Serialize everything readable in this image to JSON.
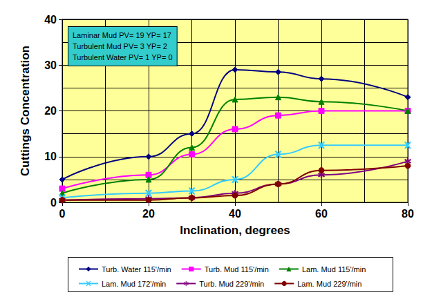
{
  "chart_data": {
    "type": "line",
    "x_label": "Inclination, degrees",
    "y_label": "Cuttings Concentration",
    "annotations": [
      "Laminar Mud PV= 19 YP= 17",
      "Turbulent Mud PV= 3 YP= 2",
      "Turbulent Water PV= 1 YP= 0"
    ],
    "x": [
      0,
      20,
      30,
      40,
      50,
      60,
      80
    ],
    "series": [
      {
        "name": "Turb. Water 115'/min",
        "color": "#000080",
        "marker": "diamond",
        "values": [
          5,
          10,
          15,
          29,
          28.5,
          27,
          23
        ]
      },
      {
        "name": "Turb. Mud 115'/min",
        "color": "#FF00FF",
        "marker": "square",
        "values": [
          3,
          6,
          10.5,
          16,
          19,
          20,
          20
        ]
      },
      {
        "name": "Lam. Mud 115'/min",
        "color": "#008000",
        "marker": "triangle",
        "values": [
          2,
          5,
          12,
          22.5,
          23,
          22,
          20
        ]
      },
      {
        "name": "Lam. Mud 172'/min",
        "color": "#33CCFF",
        "marker": "x",
        "values": [
          1,
          2,
          2.5,
          5,
          10.5,
          12.5,
          12.5
        ]
      },
      {
        "name": "Turb. Mud 229'/min",
        "color": "#800080",
        "marker": "asterisk",
        "values": [
          0.5,
          0.8,
          1,
          2,
          4,
          6,
          9
        ]
      },
      {
        "name": "Lam. Mud 229'/min",
        "color": "#800000",
        "marker": "circle",
        "values": [
          0.5,
          0.5,
          1,
          1.5,
          4,
          7,
          8
        ]
      }
    ],
    "xlim": [
      0,
      80
    ],
    "xticks": [
      0,
      20,
      40,
      60,
      80
    ],
    "ylim": [
      0,
      40
    ],
    "yticks": [
      0,
      10,
      20,
      30,
      40
    ],
    "grid": true,
    "line_style": "smooth",
    "legend": "bottom"
  }
}
